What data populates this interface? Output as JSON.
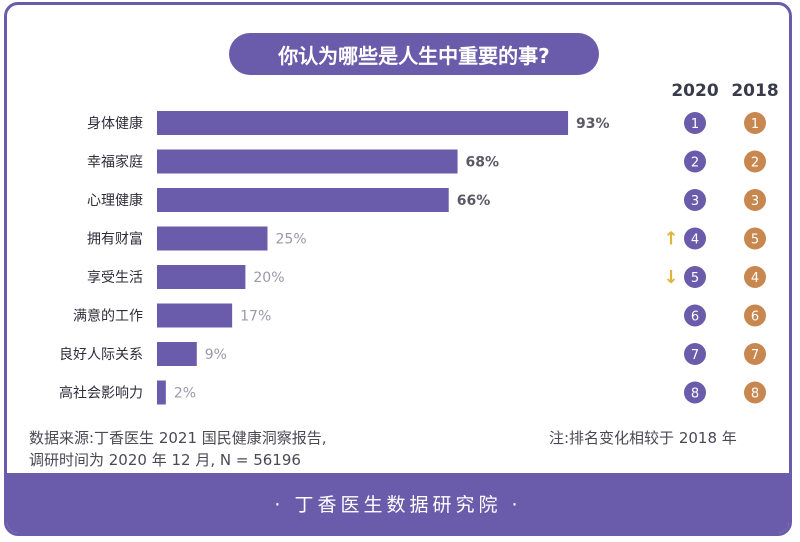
{
  "chart_data": {
    "type": "bar",
    "title": "你认为哪些是人生中重要的事?",
    "categories": [
      "身体健康",
      "幸福家庭",
      "心理健康",
      "拥有财富",
      "享受生活",
      "满意的工作",
      "良好人际关系",
      "高社会影响力"
    ],
    "values": [
      93,
      68,
      66,
      25,
      20,
      17,
      9,
      2
    ],
    "value_labels": [
      "93%",
      "68%",
      "66%",
      "25%",
      "20%",
      "17%",
      "9%",
      "2%"
    ],
    "label_bold": [
      true,
      true,
      true,
      false,
      false,
      false,
      false,
      false
    ],
    "xlim": [
      0,
      100
    ],
    "rank_columns": [
      "2020",
      "2018"
    ],
    "rank_2020": [
      "1",
      "2",
      "3",
      "4",
      "5",
      "6",
      "7",
      "8"
    ],
    "rank_2018": [
      "1",
      "2",
      "3",
      "5",
      "4",
      "6",
      "7",
      "8"
    ],
    "rank_change": [
      "",
      "",
      "",
      "↑",
      "↓",
      "",
      "",
      ""
    ],
    "colors": {
      "bar": "#6a5caa",
      "rank_2020": "#6a5caa",
      "rank_2018": "#c8874e",
      "arrow": "#e0b43c",
      "bold_label": "#5a5a66",
      "light_label": "#9a9aa8"
    }
  },
  "watermark": "丁香医生",
  "source_note": "数据来源:丁香医生 2021 国民健康洞察报告,",
  "survey_note": "调研时间为 2020 年 12 月, N = 56196",
  "rank_note": "注:排名变化相较于 2018 年",
  "footer": "· 丁香医生数据研究院 ·"
}
